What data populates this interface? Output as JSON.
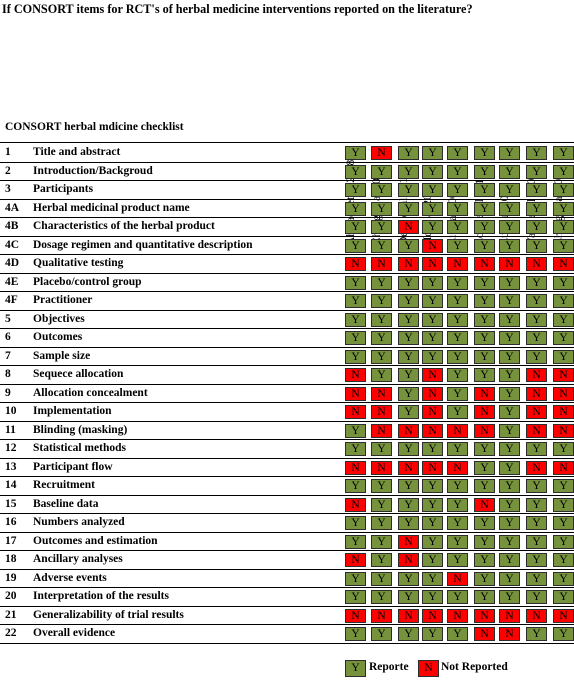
{
  "chart_data": {
    "type": "table",
    "title": "If CONSORT items for RCT's of herbal medicine interventions reported on the literature?",
    "checklist_header": "CONSORT herbal mdicine checklist",
    "columns": [
      "Ahmadi et al 2008",
      "Chang et al 2006",
      "Deng et al 2010",
      "Ho et al 2010",
      "Li et al 2008",
      "Lone et al 2011",
      "Lu et al 2012",
      "Yang et al 2002",
      "Zhang et al 2009"
    ],
    "rows": [
      {
        "num": "1",
        "label": "Title and abstract",
        "values": [
          "Y",
          "N",
          "Y",
          "Y",
          "Y",
          "Y",
          "Y",
          "Y",
          "Y"
        ]
      },
      {
        "num": "2",
        "label": "Introduction/Backgroud",
        "values": [
          "Y",
          "Y",
          "Y",
          "Y",
          "Y",
          "Y",
          "Y",
          "Y",
          "Y"
        ]
      },
      {
        "num": "3",
        "label": "Participants",
        "values": [
          "Y",
          "Y",
          "Y",
          "Y",
          "Y",
          "Y",
          "Y",
          "Y",
          "Y"
        ]
      },
      {
        "num": "4A",
        "label": "Herbal medicinal product name",
        "values": [
          "Y",
          "Y",
          "Y",
          "Y",
          "Y",
          "Y",
          "Y",
          "Y",
          "Y"
        ]
      },
      {
        "num": "4B",
        "label": "Characteristics of the herbal product",
        "values": [
          "Y",
          "Y",
          "N",
          "Y",
          "Y",
          "Y",
          "Y",
          "Y",
          "Y"
        ]
      },
      {
        "num": "4C",
        "label": "Dosage regimen and quantitative description",
        "values": [
          "Y",
          "Y",
          "Y",
          "N",
          "Y",
          "Y",
          "Y",
          "Y",
          "Y"
        ]
      },
      {
        "num": "4D",
        "label": "Qualitative testing",
        "values": [
          "N",
          "N",
          "N",
          "N",
          "N",
          "N",
          "N",
          "N",
          "N"
        ]
      },
      {
        "num": "4E",
        "label": "Placebo/control group",
        "values": [
          "Y",
          "Y",
          "Y",
          "Y",
          "Y",
          "Y",
          "Y",
          "Y",
          "Y"
        ]
      },
      {
        "num": "4F",
        "label": "Practitioner",
        "values": [
          "Y",
          "Y",
          "Y",
          "Y",
          "Y",
          "Y",
          "Y",
          "Y",
          "Y"
        ]
      },
      {
        "num": "5",
        "label": "Objectives",
        "values": [
          "Y",
          "Y",
          "Y",
          "Y",
          "Y",
          "Y",
          "Y",
          "Y",
          "Y"
        ]
      },
      {
        "num": "6",
        "label": "Outcomes",
        "values": [
          "Y",
          "Y",
          "Y",
          "Y",
          "Y",
          "Y",
          "Y",
          "Y",
          "Y"
        ]
      },
      {
        "num": "7",
        "label": "Sample size",
        "values": [
          "Y",
          "Y",
          "Y",
          "Y",
          "Y",
          "Y",
          "Y",
          "Y",
          "Y"
        ]
      },
      {
        "num": "8",
        "label": "Sequece allocation",
        "values": [
          "N",
          "Y",
          "Y",
          "N",
          "Y",
          "Y",
          "Y",
          "N",
          "N"
        ]
      },
      {
        "num": "9",
        "label": "Allocation concealment",
        "values": [
          "N",
          "N",
          "Y",
          "N",
          "Y",
          "N",
          "Y",
          "N",
          "N"
        ]
      },
      {
        "num": "10",
        "label": "Implementation",
        "values": [
          "N",
          "N",
          "Y",
          "N",
          "Y",
          "N",
          "Y",
          "N",
          "N"
        ]
      },
      {
        "num": "11",
        "label": "Blinding (masking)",
        "values": [
          "Y",
          "N",
          "N",
          "N",
          "N",
          "N",
          "Y",
          "N",
          "N"
        ]
      },
      {
        "num": "12",
        "label": "Statistical methods",
        "values": [
          "Y",
          "Y",
          "Y",
          "Y",
          "Y",
          "Y",
          "Y",
          "Y",
          "Y"
        ]
      },
      {
        "num": "13",
        "label": "Participant flow",
        "values": [
          "N",
          "N",
          "N",
          "N",
          "N",
          "Y",
          "Y",
          "N",
          "N"
        ]
      },
      {
        "num": "14",
        "label": "Recruitment",
        "values": [
          "Y",
          "Y",
          "Y",
          "Y",
          "Y",
          "Y",
          "Y",
          "Y",
          "Y"
        ]
      },
      {
        "num": "15",
        "label": "Baseline data",
        "values": [
          "N",
          "Y",
          "Y",
          "Y",
          "Y",
          "N",
          "Y",
          "Y",
          "Y"
        ]
      },
      {
        "num": "16",
        "label": "Numbers analyzed",
        "values": [
          "Y",
          "Y",
          "Y",
          "Y",
          "Y",
          "Y",
          "Y",
          "Y",
          "Y"
        ]
      },
      {
        "num": "17",
        "label": "Outcomes and estimation",
        "values": [
          "Y",
          "Y",
          "N",
          "Y",
          "Y",
          "Y",
          "Y",
          "Y",
          "Y"
        ]
      },
      {
        "num": "18",
        "label": "Ancillary analyses",
        "values": [
          "N",
          "Y",
          "N",
          "Y",
          "Y",
          "Y",
          "Y",
          "Y",
          "Y"
        ]
      },
      {
        "num": "19",
        "label": "Adverse events",
        "values": [
          "Y",
          "Y",
          "Y",
          "Y",
          "N",
          "Y",
          "Y",
          "Y",
          "Y"
        ]
      },
      {
        "num": "20",
        "label": "Interpretation of the results",
        "values": [
          "Y",
          "Y",
          "Y",
          "Y",
          "Y",
          "Y",
          "Y",
          "Y",
          "Y"
        ]
      },
      {
        "num": "21",
        "label": "Generalizability of trial results",
        "values": [
          "N",
          "N",
          "N",
          "N",
          "N",
          "N",
          "N",
          "N",
          "N"
        ]
      },
      {
        "num": "22",
        "label": "Overall evidence",
        "values": [
          "Y",
          "Y",
          "Y",
          "Y",
          "Y",
          "N",
          "N",
          "Y",
          "Y"
        ]
      }
    ],
    "legend": [
      {
        "symbol": "Y",
        "label": "Reporte",
        "color": "#76923c"
      },
      {
        "symbol": "N",
        "label": "Not Reported",
        "color": "#ff0000"
      }
    ]
  }
}
